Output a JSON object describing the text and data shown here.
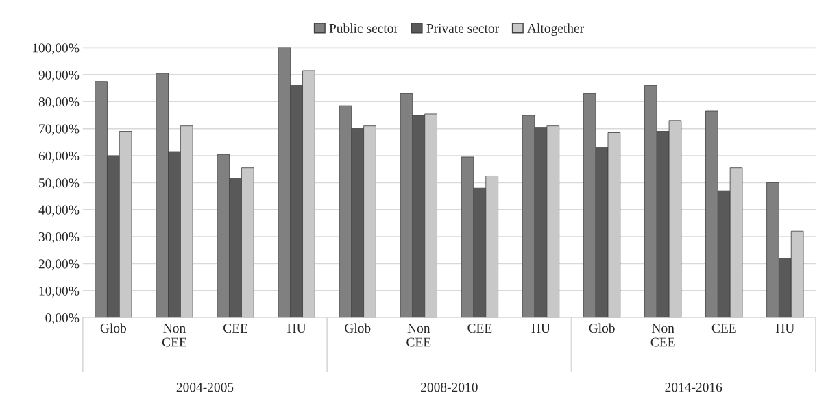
{
  "chart_data": {
    "type": "bar",
    "categories": [
      "Glob",
      "Non\nCEE",
      "CEE",
      "HU",
      "Glob",
      "Non\nCEE",
      "CEE",
      "HU",
      "Glob",
      "Non\nCEE",
      "CEE",
      "HU"
    ],
    "series": [
      {
        "name": "Public sector",
        "color": "#808080",
        "values": [
          87.5,
          90.5,
          60.5,
          100,
          78.5,
          83,
          59.5,
          75,
          83,
          86,
          76.5,
          50
        ]
      },
      {
        "name": "Private sector",
        "color": "#595959",
        "values": [
          60,
          61.5,
          51.5,
          86,
          70,
          75,
          48,
          70.5,
          63,
          69,
          47,
          22
        ]
      },
      {
        "name": "Altogether",
        "color": "#c8c8c8",
        "values": [
          69,
          71,
          55.5,
          91.5,
          71,
          75.5,
          52.5,
          71,
          68.5,
          73,
          55.5,
          32
        ]
      }
    ],
    "annotations": [
      "2004-2005",
      "2008-2010",
      "2014-2016"
    ],
    "ylim": [
      0,
      100
    ],
    "yticks": [
      {
        "value": 0,
        "label": "0,00%"
      },
      {
        "value": 10,
        "label": "10,00%"
      },
      {
        "value": 20,
        "label": "20,00%"
      },
      {
        "value": 30,
        "label": "30,00%"
      },
      {
        "value": 40,
        "label": "40,00%"
      },
      {
        "value": 50,
        "label": "50,00%"
      },
      {
        "value": 60,
        "label": "60,00%"
      },
      {
        "value": 70,
        "label": "70,00%"
      },
      {
        "value": 80,
        "label": "80,00%"
      },
      {
        "value": 90,
        "label": "90,00%"
      },
      {
        "value": 100,
        "label": "100,00%"
      }
    ],
    "grid": "y",
    "legend": "top"
  }
}
